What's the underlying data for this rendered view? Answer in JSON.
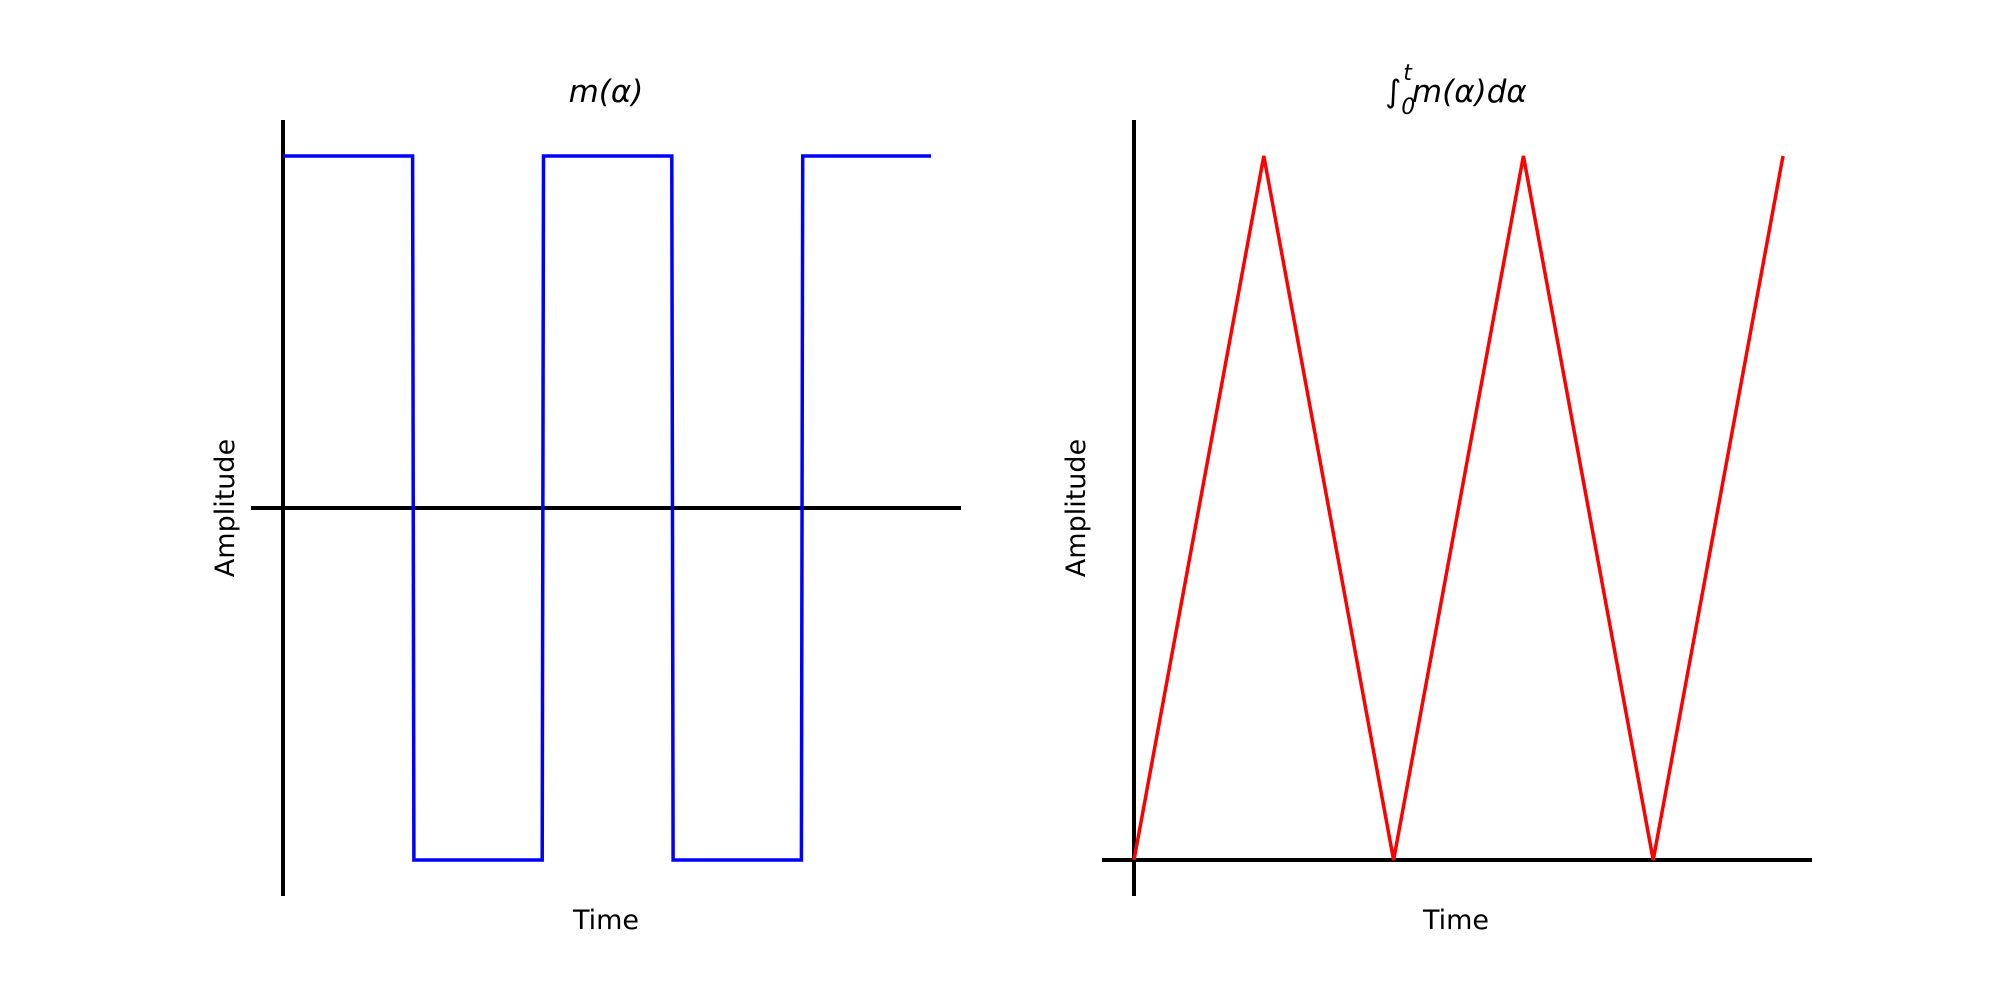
{
  "chart_data": [
    {
      "type": "line",
      "title": "m(α)",
      "xlabel": "Time",
      "ylabel": "Amplitude",
      "x_ticks": [],
      "y_ticks": [],
      "grid": false,
      "color": "#0000ff",
      "series": [
        {
          "x": [
            0,
            2.0,
            2.02,
            4.0,
            4.02,
            6.0,
            6.02,
            8.0,
            8.02,
            10.0
          ],
          "y": [
            1,
            1,
            -1,
            -1,
            1,
            1,
            -1,
            -1,
            1,
            1
          ]
        }
      ]
    },
    {
      "type": "line",
      "title": "∫_0^t m(α)dα",
      "title_parts": {
        "integral": "∫",
        "lower": "0",
        "upper": "t",
        "body": "m(α)dα"
      },
      "xlabel": "Time",
      "ylabel": "Amplitude",
      "x_ticks": [],
      "y_ticks": [],
      "grid": false,
      "color": "#ff0000",
      "series": [
        {
          "x": [
            0,
            2,
            4,
            6,
            8,
            10
          ],
          "y": [
            0,
            2,
            0,
            2,
            0,
            2
          ]
        }
      ]
    }
  ]
}
